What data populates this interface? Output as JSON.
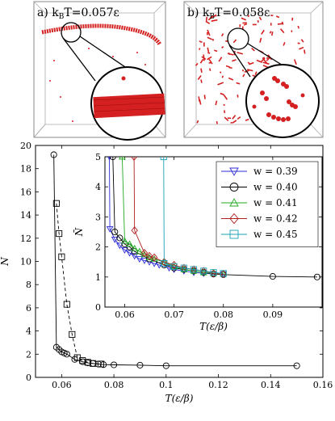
{
  "colors": {
    "line_black": "#000000",
    "blue": "#2b2bd6",
    "green": "#22aa22",
    "red_brown": "#b02020",
    "teal": "#19a3b5",
    "filament": "#d42020"
  },
  "panels": {
    "a_label": "a) k",
    "a_sub": "B",
    "a_rest": "T=0.057ε",
    "b_label": "b) k",
    "b_sub": "B",
    "b_rest": "T=0.058ε"
  },
  "chart_data": [
    {
      "type": "line",
      "xlabel": "T(ε/β)",
      "ylabel": "N̄",
      "xlim": [
        0.05,
        0.16
      ],
      "ylim": [
        0,
        20
      ],
      "xticks": [
        "0.06",
        "0.08",
        "0.1",
        "0.12",
        "0.14",
        "0.16"
      ],
      "xtick_values": [
        0.06,
        0.08,
        0.1,
        0.12,
        0.14,
        0.16
      ],
      "yticks": [
        "0",
        "2",
        "4",
        "6",
        "8",
        "10",
        "12",
        "14",
        "16",
        "18",
        "20"
      ],
      "ytick_values": [
        0,
        2,
        4,
        6,
        8,
        10,
        12,
        14,
        16,
        18,
        20
      ],
      "series": [
        {
          "marker": "circle",
          "dash": "solid",
          "color": "#000000",
          "x": [
            0.057,
            0.058,
            0.059,
            0.06,
            0.061,
            0.062,
            0.065,
            0.068,
            0.07,
            0.072,
            0.074,
            0.076,
            0.08,
            0.09,
            0.1,
            0.15
          ],
          "y": [
            19.2,
            2.6,
            2.4,
            2.2,
            2.1,
            2.0,
            1.55,
            1.35,
            1.25,
            1.2,
            1.15,
            1.1,
            1.08,
            1.05,
            1.0,
            1.0
          ]
        },
        {
          "marker": "square",
          "dash": "dashed",
          "color": "#000000",
          "x": [
            0.058,
            0.059,
            0.06,
            0.062,
            0.064,
            0.066,
            0.068,
            0.07,
            0.072,
            0.075
          ],
          "y": [
            15.0,
            12.4,
            10.4,
            6.3,
            3.7,
            1.7,
            1.45,
            1.3,
            1.2,
            1.15
          ]
        }
      ]
    },
    {
      "type": "line",
      "xlabel": "T(ε/β)",
      "ylabel": "N̄",
      "xlim": [
        0.056,
        0.1
      ],
      "ylim": [
        0,
        5
      ],
      "xticks": [
        "0.06",
        "0.07",
        "0.08",
        "0.09"
      ],
      "xtick_values": [
        0.06,
        0.07,
        0.08,
        0.09
      ],
      "yticks": [
        "0",
        "1",
        "2",
        "3",
        "4",
        "5"
      ],
      "ytick_values": [
        0,
        1,
        2,
        3,
        4,
        5
      ],
      "legend_position": "top-right",
      "series": [
        {
          "name": "w = 0.39",
          "marker": "triangle-down",
          "color": "#2b2bd6",
          "x": [
            0.0569,
            0.057,
            0.058,
            0.059,
            0.06,
            0.061,
            0.062,
            0.063,
            0.064,
            0.065,
            0.066,
            0.067,
            0.069,
            0.07,
            0.072,
            0.074,
            0.076,
            0.078,
            0.08
          ],
          "y": [
            5.0,
            2.6,
            2.25,
            2.05,
            1.9,
            1.8,
            1.7,
            1.6,
            1.55,
            1.5,
            1.45,
            1.4,
            1.3,
            1.25,
            1.2,
            1.15,
            1.12,
            1.1,
            1.1
          ]
        },
        {
          "name": "w = 0.40",
          "marker": "circle",
          "color": "#000000",
          "x": [
            0.0576,
            0.058,
            0.059,
            0.06,
            0.061,
            0.062,
            0.065,
            0.068,
            0.07,
            0.072,
            0.074,
            0.076,
            0.078,
            0.08,
            0.09,
            0.099
          ],
          "y": [
            5.0,
            2.5,
            2.3,
            2.1,
            2.0,
            1.85,
            1.6,
            1.4,
            1.3,
            1.25,
            1.2,
            1.15,
            1.1,
            1.08,
            1.02,
            1.0
          ]
        },
        {
          "name": "w = 0.41",
          "marker": "triangle-up",
          "color": "#22aa22",
          "x": [
            0.0595,
            0.06,
            0.061,
            0.062,
            0.063,
            0.064,
            0.065,
            0.066,
            0.068,
            0.07,
            0.072,
            0.074,
            0.076,
            0.078,
            0.08
          ],
          "y": [
            5.0,
            2.2,
            2.1,
            1.95,
            1.85,
            1.75,
            1.65,
            1.6,
            1.5,
            1.35,
            1.25,
            1.2,
            1.15,
            1.12,
            1.1
          ]
        },
        {
          "name": "w = 0.42",
          "marker": "diamond",
          "color": "#b02020",
          "x": [
            0.0619,
            0.062,
            0.064,
            0.065,
            0.066,
            0.068,
            0.07,
            0.072,
            0.074,
            0.076,
            0.078,
            0.08
          ],
          "y": [
            5.0,
            2.55,
            1.8,
            1.7,
            1.65,
            1.5,
            1.4,
            1.3,
            1.25,
            1.2,
            1.12,
            1.1
          ]
        },
        {
          "name": "w = 0.45",
          "marker": "square",
          "color": "#19a3b5",
          "x": [
            0.0679,
            0.068,
            0.07,
            0.072,
            0.074,
            0.076,
            0.078,
            0.08
          ],
          "y": [
            5.0,
            1.45,
            1.35,
            1.3,
            1.25,
            1.2,
            1.15,
            1.12
          ]
        }
      ]
    }
  ]
}
